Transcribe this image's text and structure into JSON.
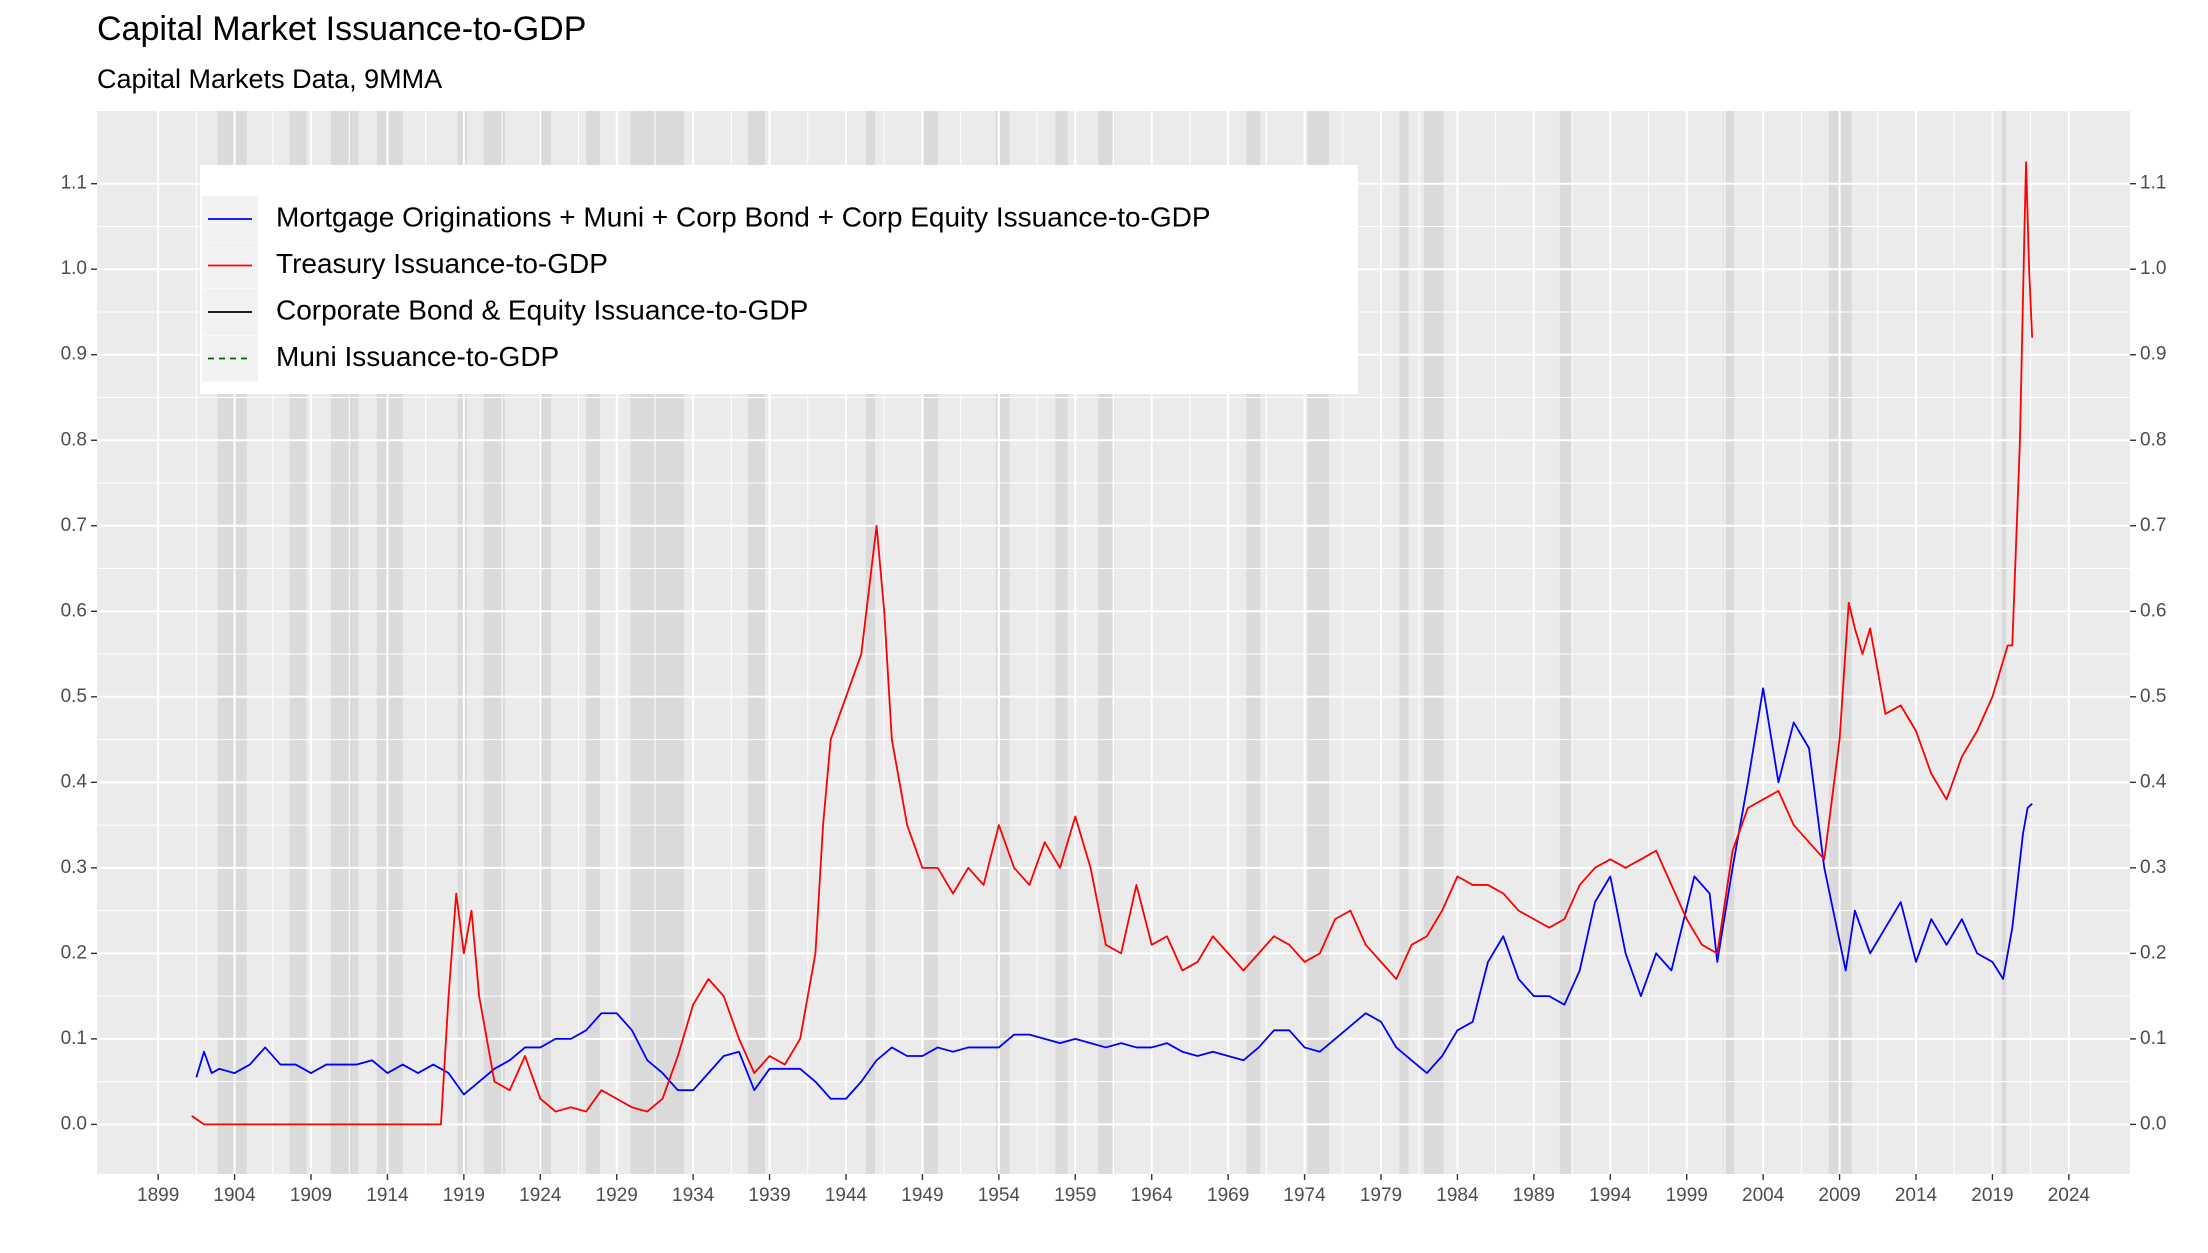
{
  "chart_data": {
    "type": "line",
    "title": "Capital Market Issuance-to-GDP",
    "subtitle": "Capital Markets Data, 9MMA",
    "xlim": [
      1895,
      2028
    ],
    "ylim": [
      -0.058,
      1.185
    ],
    "xticks": [
      1899,
      1904,
      1909,
      1914,
      1919,
      1924,
      1929,
      1934,
      1939,
      1944,
      1949,
      1954,
      1959,
      1964,
      1969,
      1974,
      1979,
      1984,
      1989,
      1994,
      1999,
      2004,
      2009,
      2014,
      2019,
      2024
    ],
    "yticks": [
      {
        "value": 0,
        "label": "0.0"
      },
      0.1,
      0.2,
      0.3,
      0.4,
      0.5,
      0.6,
      0.7,
      0.8,
      0.9,
      {
        "value": 1,
        "label": "1.0"
      },
      1.1
    ],
    "y2ticks": [
      {
        "value": 0,
        "label": "0.0"
      },
      0.1,
      0.2,
      0.3,
      0.4,
      0.5,
      0.6,
      0.7,
      0.8,
      0.9,
      {
        "value": 1,
        "label": "1.0"
      },
      1.1
    ],
    "grid": true,
    "legend": "top-left",
    "recession_shading": [
      [
        1902.9,
        1904.8
      ],
      [
        1907.6,
        1908.7
      ],
      [
        1910.3,
        1912.1
      ],
      [
        1913.3,
        1915.0
      ],
      [
        1918.6,
        1919.2
      ],
      [
        1920.3,
        1921.7
      ],
      [
        1923.9,
        1924.7
      ],
      [
        1927.0,
        1927.9
      ],
      [
        1929.9,
        1933.4
      ],
      [
        1937.6,
        1938.7
      ],
      [
        1945.3,
        1945.9
      ],
      [
        1949.1,
        1950.0
      ],
      [
        1953.8,
        1954.7
      ],
      [
        1957.7,
        1958.5
      ],
      [
        1960.5,
        1961.4
      ],
      [
        1970.2,
        1971.1
      ],
      [
        1974.2,
        1975.6
      ],
      [
        1980.2,
        1980.8
      ],
      [
        1981.8,
        1983.1
      ],
      [
        1990.7,
        1991.5
      ],
      [
        2001.4,
        2002.1
      ],
      [
        2008.3,
        2009.8
      ],
      [
        2019.6,
        2019.9
      ]
    ],
    "series": [
      {
        "name": "Mortgage Originations + Muni + Corp Bond + Corp Equity Issuance-to-GDP",
        "color": "#0000ff",
        "x": [
          1901.5,
          1902,
          1902.5,
          1903,
          1904,
          1905,
          1906,
          1907,
          1908,
          1909,
          1910,
          1911,
          1912,
          1913,
          1914,
          1915,
          1916,
          1917,
          1918,
          1919,
          1920,
          1921,
          1922,
          1923,
          1924,
          1925,
          1926,
          1927,
          1928,
          1929,
          1930,
          1931,
          1932,
          1933,
          1934,
          1935,
          1936,
          1937,
          1938,
          1939,
          1940,
          1941,
          1942,
          1943,
          1944,
          1945,
          1946,
          1947,
          1948,
          1949,
          1950,
          1951,
          1952,
          1953,
          1954,
          1955,
          1956,
          1957,
          1958,
          1959,
          1960,
          1961,
          1962,
          1963,
          1964,
          1965,
          1966,
          1967,
          1968,
          1969,
          1970,
          1971,
          1972,
          1973,
          1974,
          1975,
          1976,
          1977,
          1978,
          1979,
          1980,
          1981,
          1982,
          1983,
          1984,
          1985,
          1986,
          1987,
          1988,
          1989,
          1990,
          1991,
          1992,
          1993,
          1994,
          1995,
          1996,
          1997,
          1998,
          1999.5,
          2000.5,
          2001,
          2002,
          2003,
          2004,
          2005,
          2006,
          2007,
          2008,
          2009.4,
          2010,
          2011,
          2012,
          2013,
          2014,
          2015,
          2016,
          2017,
          2018,
          2019,
          2019.7,
          2020.3,
          2021,
          2021.3,
          2021.6
        ],
        "values": [
          0.055,
          0.085,
          0.06,
          0.065,
          0.06,
          0.07,
          0.09,
          0.07,
          0.07,
          0.06,
          0.07,
          0.07,
          0.07,
          0.075,
          0.06,
          0.07,
          0.06,
          0.07,
          0.06,
          0.035,
          0.05,
          0.065,
          0.075,
          0.09,
          0.09,
          0.1,
          0.1,
          0.11,
          0.13,
          0.13,
          0.11,
          0.075,
          0.06,
          0.04,
          0.04,
          0.06,
          0.08,
          0.085,
          0.04,
          0.065,
          0.065,
          0.065,
          0.05,
          0.03,
          0.03,
          0.05,
          0.075,
          0.09,
          0.08,
          0.08,
          0.09,
          0.085,
          0.09,
          0.09,
          0.09,
          0.105,
          0.105,
          0.1,
          0.095,
          0.1,
          0.095,
          0.09,
          0.095,
          0.09,
          0.09,
          0.095,
          0.085,
          0.08,
          0.085,
          0.08,
          0.075,
          0.09,
          0.11,
          0.11,
          0.09,
          0.085,
          0.1,
          0.115,
          0.13,
          0.12,
          0.09,
          0.075,
          0.06,
          0.08,
          0.11,
          0.12,
          0.19,
          0.22,
          0.17,
          0.15,
          0.15,
          0.14,
          0.18,
          0.26,
          0.29,
          0.2,
          0.15,
          0.2,
          0.18,
          0.29,
          0.27,
          0.19,
          0.3,
          0.4,
          0.51,
          0.4,
          0.47,
          0.44,
          0.3,
          0.18,
          0.25,
          0.2,
          0.23,
          0.26,
          0.19,
          0.24,
          0.21,
          0.24,
          0.2,
          0.19,
          0.17,
          0.23,
          0.34,
          0.37,
          0.375
        ]
      },
      {
        "name": "Treasury Issuance-to-GDP",
        "color": "#ff0000",
        "x": [
          1901.2,
          1902,
          1910,
          1917.5,
          1918,
          1918.5,
          1919,
          1919.5,
          1920,
          1920.5,
          1921,
          1922,
          1923,
          1924,
          1925,
          1926,
          1927,
          1928,
          1929,
          1930,
          1931,
          1932,
          1933,
          1934,
          1935,
          1936,
          1937,
          1938,
          1939,
          1940,
          1941,
          1942,
          1942.5,
          1943,
          1944,
          1945,
          1946,
          1946.5,
          1947,
          1948,
          1949,
          1950,
          1951,
          1952,
          1953,
          1954,
          1955,
          1956,
          1957,
          1958,
          1959,
          1960,
          1961,
          1962,
          1963,
          1964,
          1965,
          1966,
          1967,
          1968,
          1969,
          1970,
          1971,
          1972,
          1973,
          1974,
          1975,
          1976,
          1977,
          1978,
          1979,
          1980,
          1981,
          1982,
          1983,
          1984,
          1985,
          1986,
          1987,
          1988,
          1989,
          1990,
          1991,
          1992,
          1993,
          1994,
          1995,
          1996,
          1997,
          1998,
          1999,
          2000,
          2001,
          2002,
          2003,
          2004,
          2005,
          2006,
          2007,
          2008,
          2009,
          2009.6,
          2010,
          2010.5,
          2011,
          2012,
          2013,
          2014,
          2015,
          2016,
          2017,
          2018,
          2019,
          2020,
          2020.3,
          2020.8,
          2021.1,
          2021.2,
          2021.4,
          2021.6
        ],
        "values": [
          0.01,
          0,
          0,
          0,
          0.15,
          0.27,
          0.2,
          0.25,
          0.15,
          0.1,
          0.05,
          0.04,
          0.08,
          0.03,
          0.015,
          0.02,
          0.015,
          0.04,
          0.03,
          0.02,
          0.015,
          0.03,
          0.08,
          0.14,
          0.17,
          0.15,
          0.1,
          0.06,
          0.08,
          0.07,
          0.1,
          0.2,
          0.35,
          0.45,
          0.5,
          0.55,
          0.7,
          0.6,
          0.45,
          0.35,
          0.3,
          0.3,
          0.27,
          0.3,
          0.28,
          0.35,
          0.3,
          0.28,
          0.33,
          0.3,
          0.36,
          0.3,
          0.21,
          0.2,
          0.28,
          0.21,
          0.22,
          0.18,
          0.19,
          0.22,
          0.2,
          0.18,
          0.2,
          0.22,
          0.21,
          0.19,
          0.2,
          0.24,
          0.25,
          0.21,
          0.19,
          0.17,
          0.21,
          0.22,
          0.25,
          0.29,
          0.28,
          0.28,
          0.27,
          0.25,
          0.24,
          0.23,
          0.24,
          0.28,
          0.3,
          0.31,
          0.3,
          0.31,
          0.32,
          0.28,
          0.24,
          0.21,
          0.2,
          0.32,
          0.37,
          0.38,
          0.39,
          0.35,
          0.33,
          0.31,
          0.45,
          0.61,
          0.58,
          0.55,
          0.58,
          0.48,
          0.49,
          0.46,
          0.41,
          0.38,
          0.43,
          0.46,
          0.5,
          0.56,
          0.56,
          0.8,
          1.05,
          1.125,
          1,
          0.92
        ]
      },
      {
        "name": "Corporate Bond & Equity Issuance-to-GDP",
        "color": "#000000",
        "x": [],
        "values": []
      },
      {
        "name": "Muni Issuance-to-GDP",
        "color": "#006400",
        "dashed": true,
        "x": [],
        "values": []
      }
    ]
  }
}
